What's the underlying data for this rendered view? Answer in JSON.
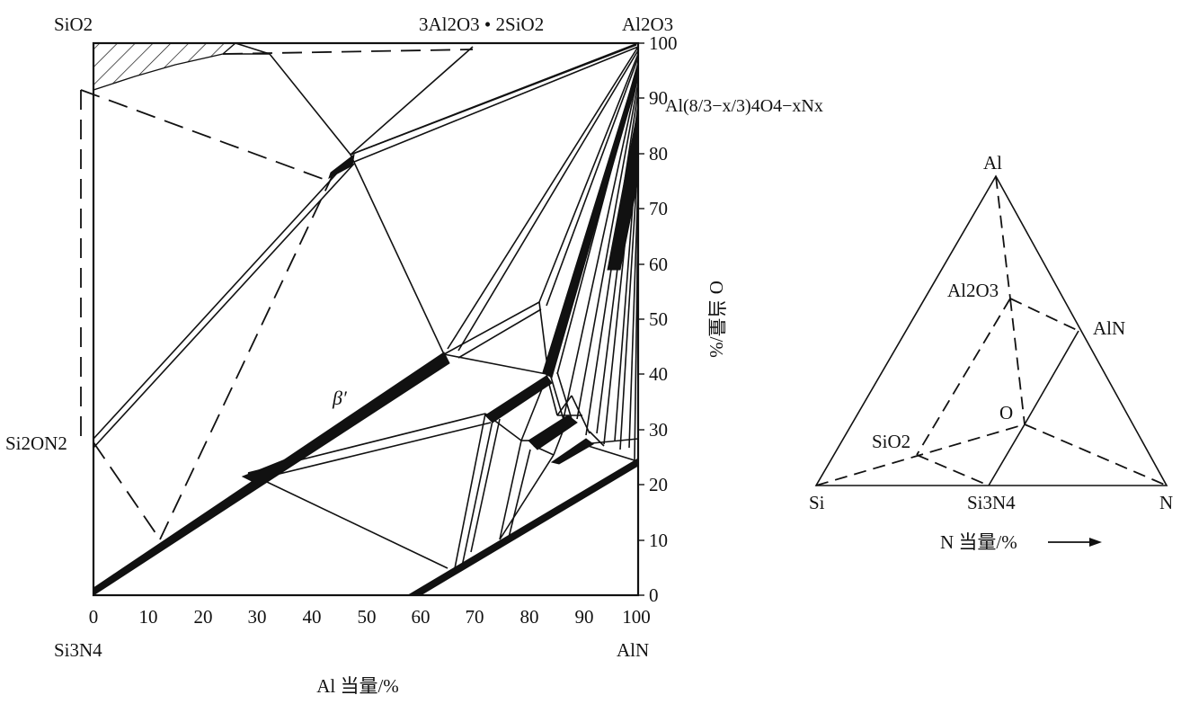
{
  "square_diagram": {
    "corner_labels": {
      "top_left": "SiO2",
      "top_middle": "3Al2O3 • 2SiO2",
      "top_right": "Al2O3",
      "left_side": "Si2ON2",
      "bottom_left": "Si3N4",
      "bottom_right": "AlN"
    },
    "x_axis": {
      "ticks": [
        "0",
        "10",
        "20",
        "30",
        "40",
        "50",
        "60",
        "70",
        "80",
        "90",
        "100"
      ],
      "label": "Al 当量/%"
    },
    "y_axis": {
      "ticks": [
        "0",
        "10",
        "20",
        "30",
        "40",
        "50",
        "60",
        "70",
        "80",
        "90",
        "100"
      ],
      "label": "O 当量/%"
    },
    "formula_label": "Al(8/3−x/3)4O4−xNx",
    "beta_label": "β′"
  },
  "triangle_diagram": {
    "vertex_labels": {
      "top": "Al",
      "bottom_left": "Si",
      "bottom_right": "N"
    },
    "point_labels": {
      "al2o3": "Al2O3",
      "aln": "AlN",
      "sio2": "SiO2",
      "si3n4": "Si3N4",
      "o": "O"
    },
    "axis_label": "N 当量/%"
  }
}
